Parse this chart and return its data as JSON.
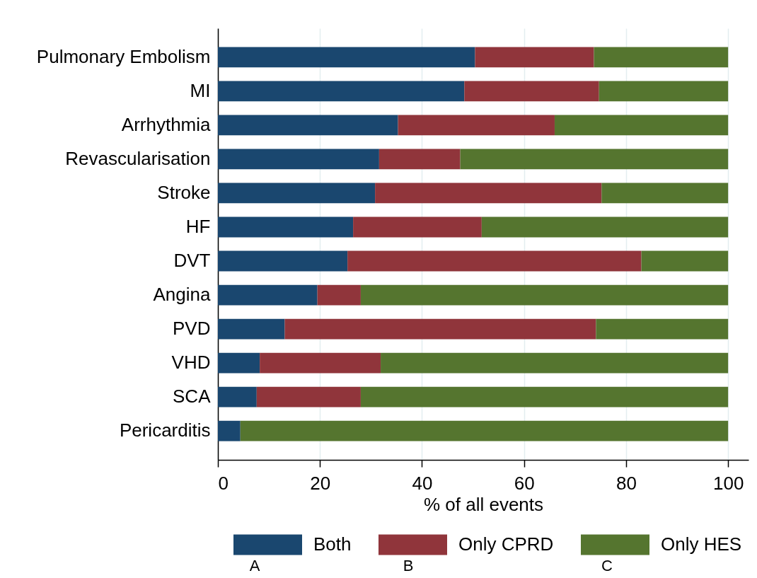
{
  "chart_data": {
    "type": "bar",
    "orientation": "horizontal",
    "stacked": true,
    "xlabel": "% of all events",
    "categories": [
      "Pulmonary Embolism",
      "MI",
      "Arrhythmia",
      "Revascularisation",
      "Stroke",
      "HF",
      "DVT",
      "Angina",
      "PVD",
      "VHD",
      "SCA",
      "Pericarditis"
    ],
    "series": [
      {
        "name": "Both",
        "color": "#1a476f",
        "values": [
          50.4,
          48.3,
          35.3,
          31.6,
          30.8,
          26.5,
          25.4,
          19.5,
          13.1,
          8.2,
          7.6,
          4.4
        ]
      },
      {
        "name": "Only CPRD",
        "color": "#90353b",
        "values": [
          23.3,
          26.4,
          30.7,
          15.9,
          44.4,
          25.2,
          57.6,
          8.5,
          61.0,
          23.7,
          20.4,
          0
        ]
      },
      {
        "name": "Only HES",
        "color": "#55752f",
        "values": [
          26.3,
          25.3,
          34.0,
          52.5,
          24.8,
          48.3,
          17.0,
          72.0,
          25.9,
          68.1,
          72.0,
          95.6
        ]
      }
    ],
    "xlim": [
      0,
      104
    ],
    "xticks": [
      0,
      20,
      40,
      60,
      80,
      100
    ],
    "grid": "x",
    "legend": "bottom",
    "annotations": [
      "A",
      "B",
      "C"
    ]
  }
}
